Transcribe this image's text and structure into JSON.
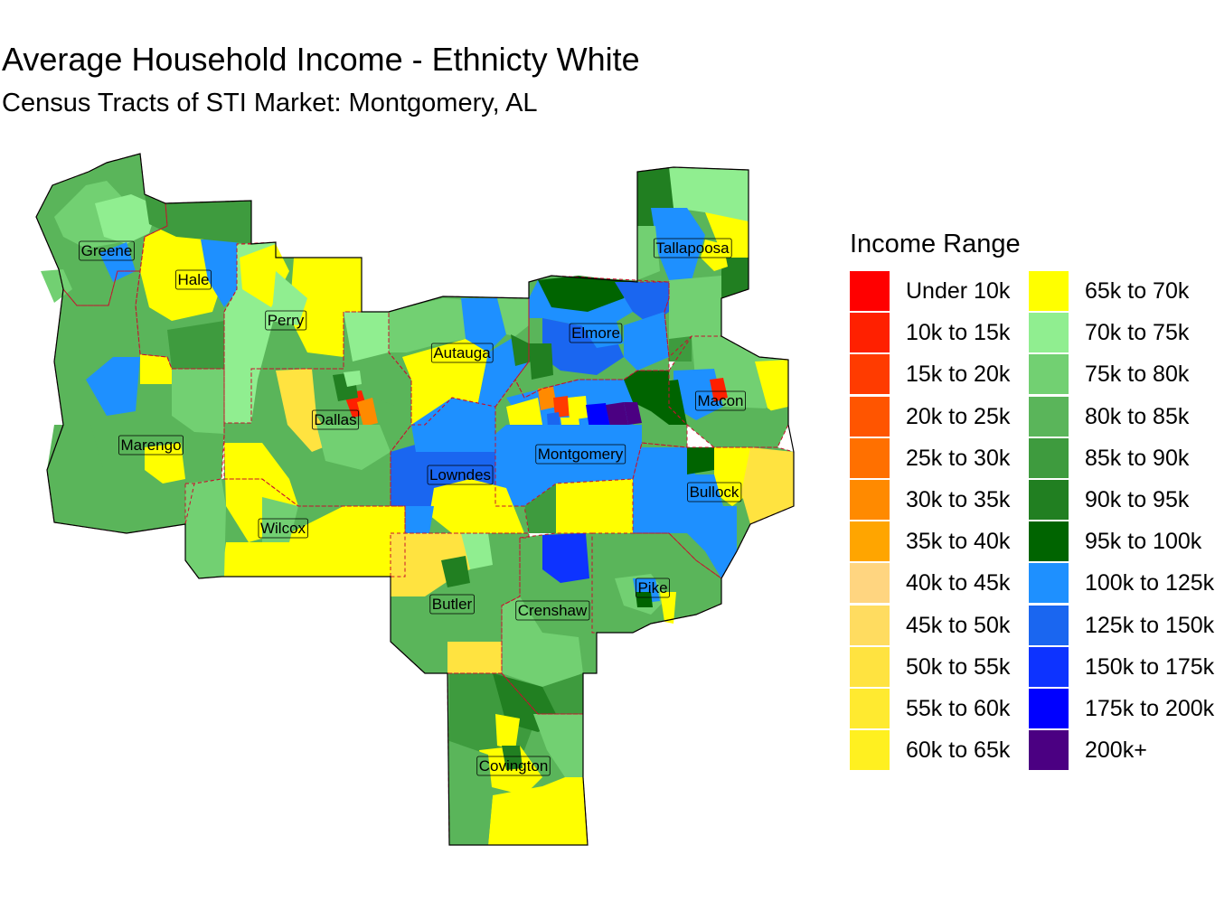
{
  "title": "Average Household Income - Ethnicty White",
  "subtitle": "Census Tracts of STI Market: Montgomery, AL",
  "legend": {
    "title": "Income Range",
    "items": [
      {
        "label": "Under 10k",
        "color": "#FF0000"
      },
      {
        "label": "10k to 15k",
        "color": "#FF2000"
      },
      {
        "label": "15k to 20k",
        "color": "#FF3B00"
      },
      {
        "label": "20k to 25k",
        "color": "#FF5500"
      },
      {
        "label": "25k to 30k",
        "color": "#FF7000"
      },
      {
        "label": "30k to 35k",
        "color": "#FF8A00"
      },
      {
        "label": "35k to 40k",
        "color": "#FFA500"
      },
      {
        "label": "40k to 45k",
        "color": "#FFD580"
      },
      {
        "label": "45k to 50k",
        "color": "#FFDC60"
      },
      {
        "label": "50k to 55k",
        "color": "#FFE340"
      },
      {
        "label": "55k to 60k",
        "color": "#FFEA30"
      },
      {
        "label": "60k to 65k",
        "color": "#FFF020"
      },
      {
        "label": "65k to 70k",
        "color": "#FFFF00"
      },
      {
        "label": "70k to 75k",
        "color": "#90EE90"
      },
      {
        "label": "75k to 80k",
        "color": "#72D072"
      },
      {
        "label": "80k to 85k",
        "color": "#5AB55A"
      },
      {
        "label": "85k to 90k",
        "color": "#3E9B3E"
      },
      {
        "label": "90k to 95k",
        "color": "#217F21"
      },
      {
        "label": "95k to 100k",
        "color": "#006400"
      },
      {
        "label": "100k to 125k",
        "color": "#1E90FF"
      },
      {
        "label": "125k to 150k",
        "color": "#1A66F0"
      },
      {
        "label": "150k to 175k",
        "color": "#0D33FF"
      },
      {
        "label": "175k to 200k",
        "color": "#0000FF"
      },
      {
        "label": "200k+",
        "color": "#4B0082"
      }
    ]
  },
  "counties": [
    {
      "name": "Greene"
    },
    {
      "name": "Hale"
    },
    {
      "name": "Perry"
    },
    {
      "name": "Autauga"
    },
    {
      "name": "Elmore"
    },
    {
      "name": "Tallapoosa"
    },
    {
      "name": "Macon"
    },
    {
      "name": "Dallas"
    },
    {
      "name": "Marengo"
    },
    {
      "name": "Lowndes"
    },
    {
      "name": "Montgomery"
    },
    {
      "name": "Bullock"
    },
    {
      "name": "Wilcox"
    },
    {
      "name": "Butler"
    },
    {
      "name": "Crenshaw"
    },
    {
      "name": "Pike"
    },
    {
      "name": "Covington"
    }
  ]
}
